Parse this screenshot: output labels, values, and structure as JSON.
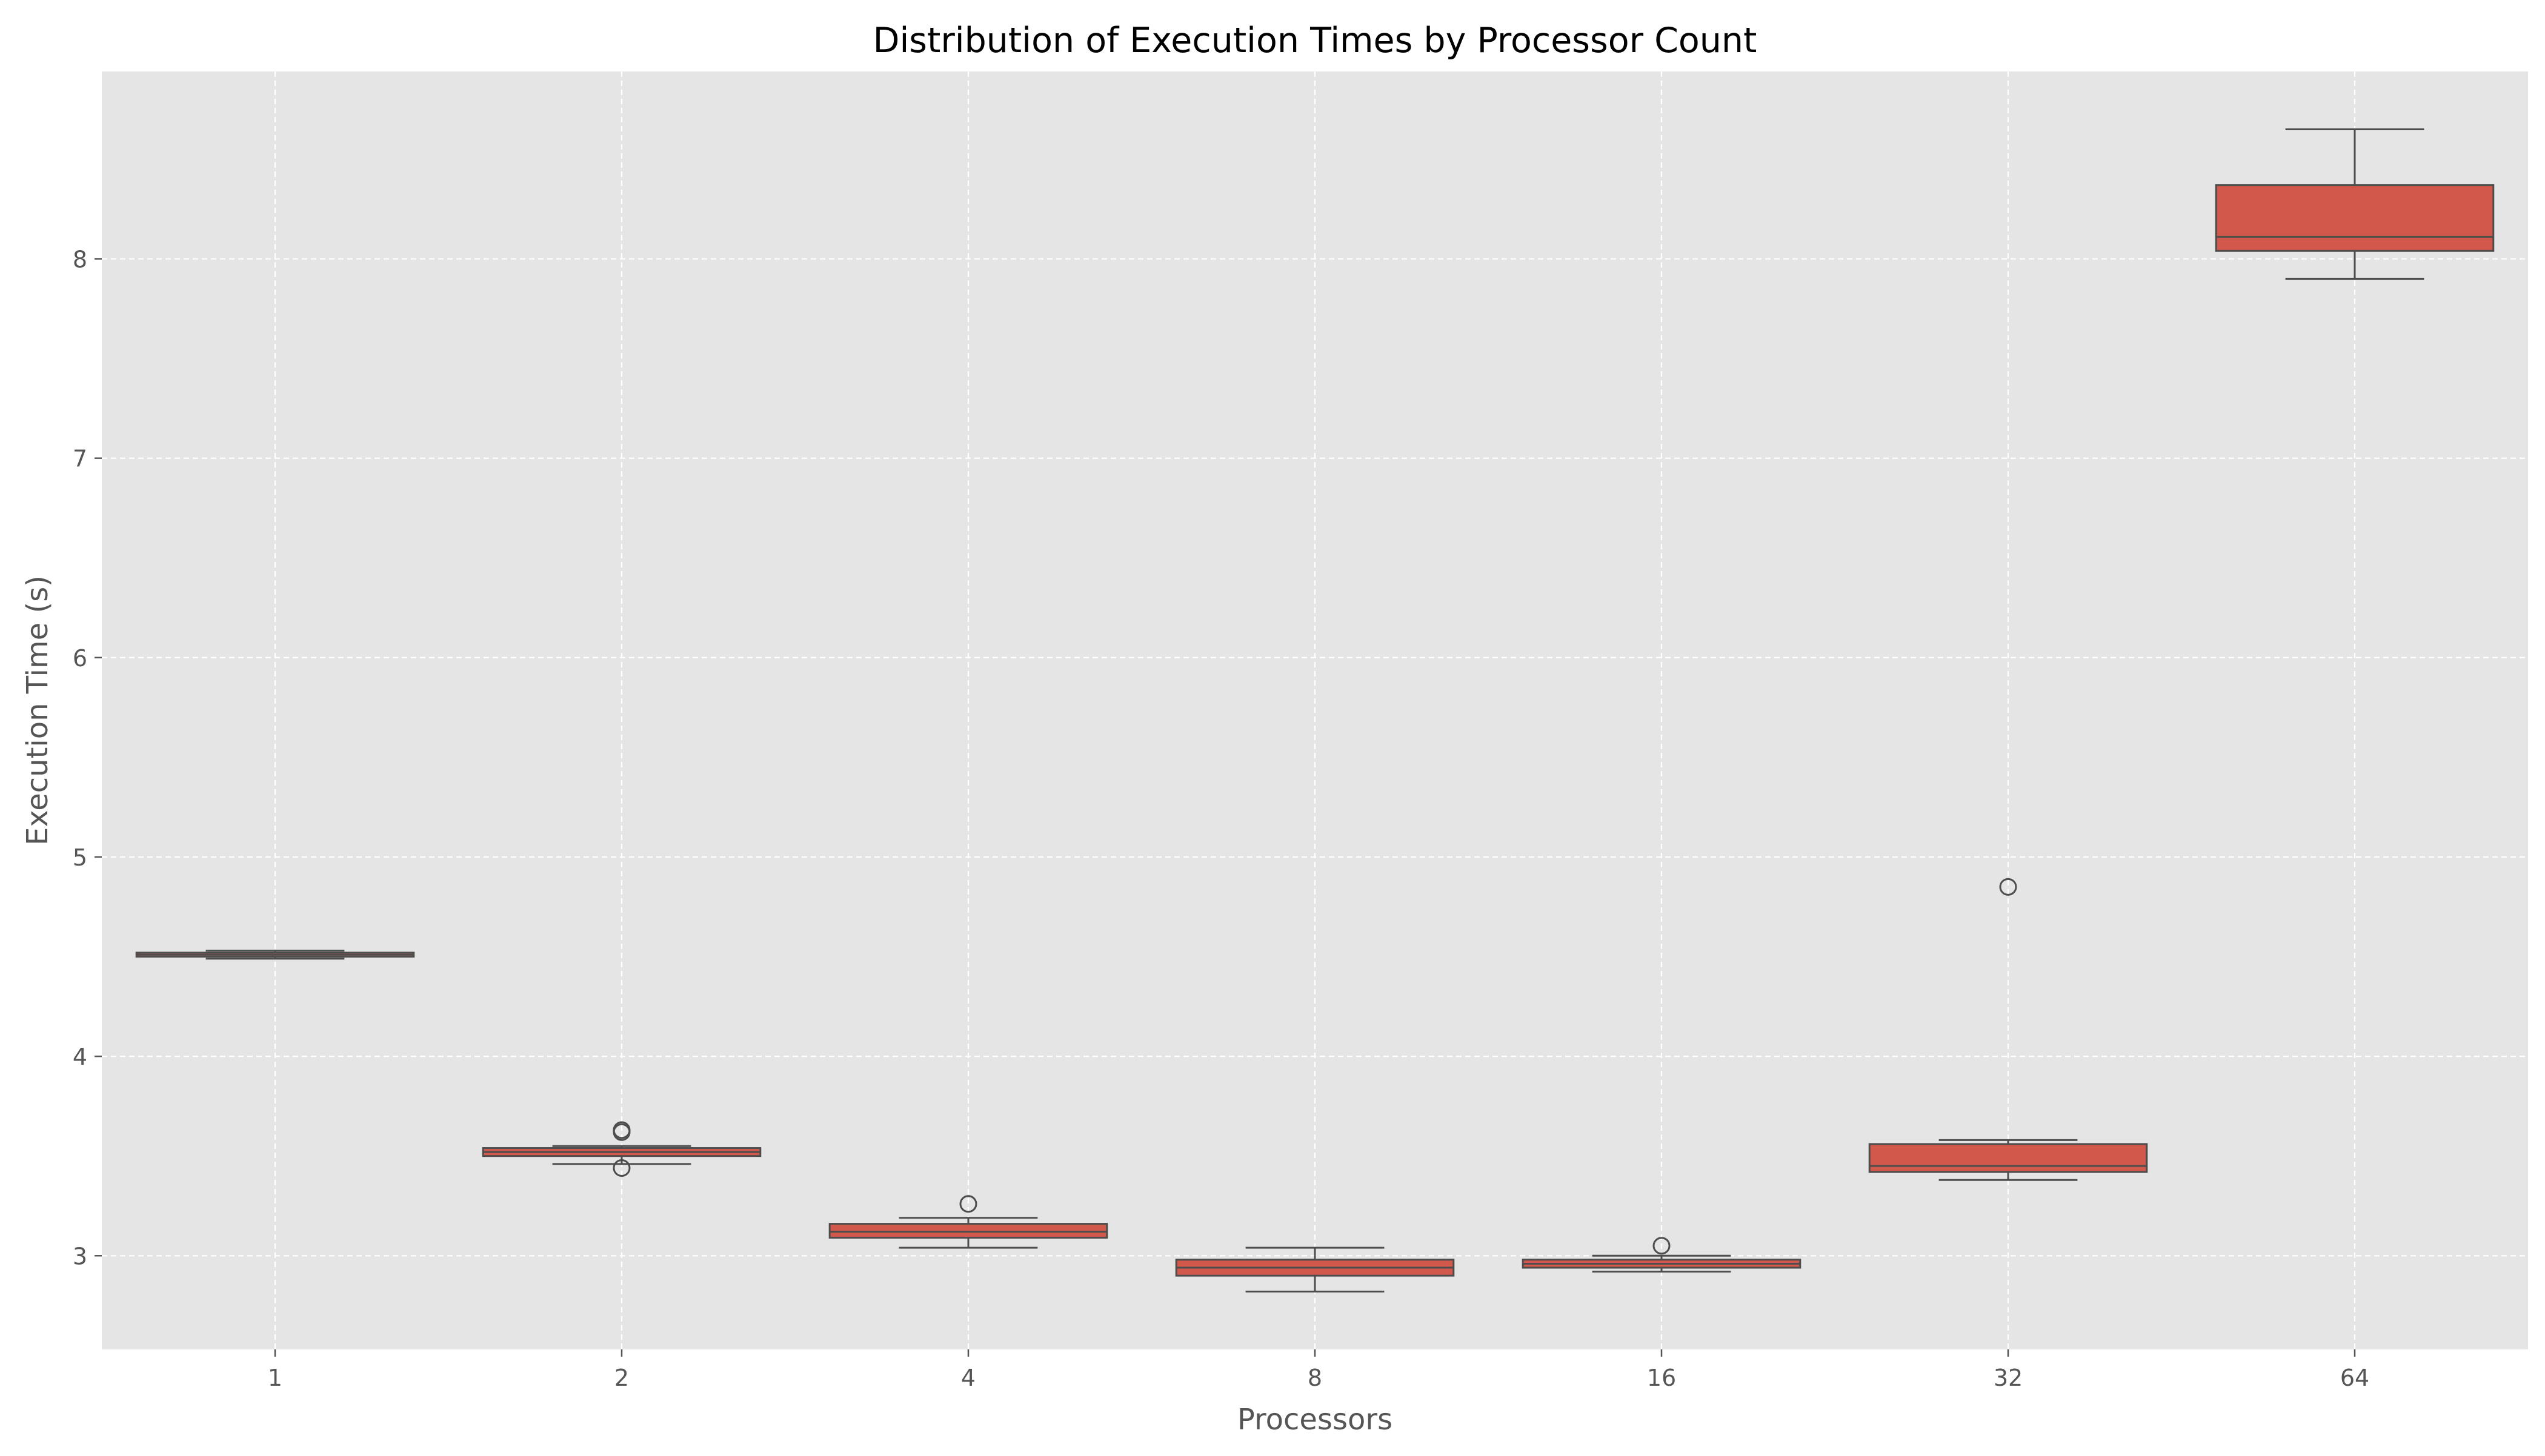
{
  "chart_data": {
    "type": "box",
    "title": "Distribution of Execution Times by Processor Count",
    "xlabel": "Processors",
    "ylabel": "Execution Time (s)",
    "categories": [
      "1",
      "2",
      "4",
      "8",
      "16",
      "32",
      "64"
    ],
    "ylim": [
      2.53,
      8.94
    ],
    "yticks": [
      3,
      4,
      5,
      6,
      7,
      8
    ],
    "grid": true,
    "legend": "none",
    "boxes": [
      {
        "category": "1",
        "whisker_low": 4.49,
        "q1": 4.5,
        "median": 4.51,
        "q3": 4.52,
        "whisker_high": 4.53,
        "outliers": []
      },
      {
        "category": "2",
        "whisker_low": 3.46,
        "q1": 3.5,
        "median": 3.52,
        "q3": 3.54,
        "whisker_high": 3.55,
        "outliers": [
          3.63,
          3.62,
          3.44
        ]
      },
      {
        "category": "4",
        "whisker_low": 3.04,
        "q1": 3.09,
        "median": 3.12,
        "q3": 3.16,
        "whisker_high": 3.19,
        "outliers": [
          3.26
        ]
      },
      {
        "category": "8",
        "whisker_low": 2.82,
        "q1": 2.9,
        "median": 2.94,
        "q3": 2.98,
        "whisker_high": 3.04,
        "outliers": []
      },
      {
        "category": "16",
        "whisker_low": 2.92,
        "q1": 2.94,
        "median": 2.96,
        "q3": 2.98,
        "whisker_high": 3.0,
        "outliers": [
          3.05
        ]
      },
      {
        "category": "32",
        "whisker_low": 3.38,
        "q1": 3.42,
        "median": 3.45,
        "q3": 3.56,
        "whisker_high": 3.58,
        "outliers": [
          4.85
        ]
      },
      {
        "category": "64",
        "whisker_low": 7.9,
        "q1": 8.04,
        "median": 8.11,
        "q3": 8.37,
        "whisker_high": 8.65,
        "outliers": []
      }
    ],
    "colors": {
      "box_fill": "#d1584a",
      "box_edge": "#4d4d4d",
      "axes_background": "#e5e5e5",
      "grid": "#ffffff",
      "text": "#555555",
      "title": "#000000"
    }
  }
}
